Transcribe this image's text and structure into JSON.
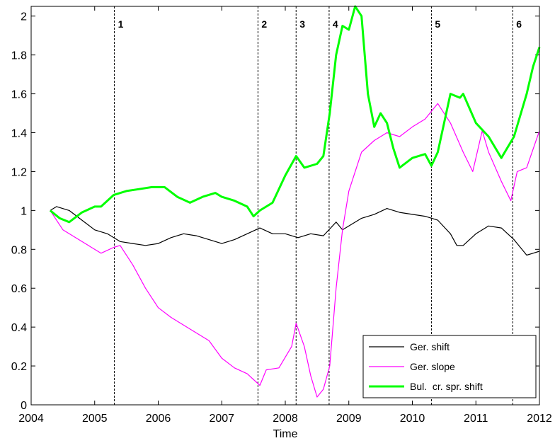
{
  "chart_data": {
    "type": "line",
    "xlabel": "Time",
    "xlim": [
      2004,
      2012
    ],
    "xticks": [
      2004,
      2005,
      2006,
      2007,
      2008,
      2009,
      2010,
      2011,
      2012
    ],
    "ylim": [
      0,
      2.05
    ],
    "yticks": [
      0,
      0.2,
      0.4,
      0.6,
      0.8,
      1,
      1.2,
      1.4,
      1.6,
      1.8,
      2
    ],
    "legend": "lower right",
    "vlines": [
      {
        "x": 2005.31,
        "label": "1"
      },
      {
        "x": 2007.57,
        "label": "2"
      },
      {
        "x": 2008.17,
        "label": "3"
      },
      {
        "x": 2008.69,
        "label": "4"
      },
      {
        "x": 2010.3,
        "label": "5"
      },
      {
        "x": 2011.58,
        "label": "6"
      }
    ],
    "series": [
      {
        "name": "Ger. shift",
        "color": "#000000",
        "width": 1.2,
        "x": [
          2004.3,
          2004.4,
          2004.6,
          2004.8,
          2005.0,
          2005.2,
          2005.4,
          2005.6,
          2005.8,
          2006.0,
          2006.2,
          2006.4,
          2006.6,
          2006.8,
          2007.0,
          2007.2,
          2007.4,
          2007.6,
          2007.8,
          2008.0,
          2008.2,
          2008.4,
          2008.6,
          2008.8,
          2008.9,
          2009.0,
          2009.2,
          2009.4,
          2009.6,
          2009.8,
          2010.0,
          2010.2,
          2010.4,
          2010.6,
          2010.7,
          2010.8,
          2011.0,
          2011.2,
          2011.4,
          2011.6,
          2011.8,
          2011.9,
          2012.0
        ],
        "values": [
          1.0,
          1.02,
          1.0,
          0.95,
          0.9,
          0.88,
          0.84,
          0.83,
          0.82,
          0.83,
          0.86,
          0.88,
          0.87,
          0.85,
          0.83,
          0.85,
          0.88,
          0.91,
          0.88,
          0.88,
          0.86,
          0.88,
          0.87,
          0.94,
          0.9,
          0.92,
          0.96,
          0.98,
          1.01,
          0.99,
          0.98,
          0.97,
          0.95,
          0.88,
          0.82,
          0.82,
          0.88,
          0.92,
          0.91,
          0.85,
          0.77,
          0.78,
          0.79
        ]
      },
      {
        "name": "Ger. slope",
        "color": "#ff00ff",
        "width": 1.2,
        "x": [
          2004.3,
          2004.5,
          2004.7,
          2004.9,
          2005.1,
          2005.3,
          2005.4,
          2005.6,
          2005.8,
          2006.0,
          2006.2,
          2006.4,
          2006.6,
          2006.8,
          2007.0,
          2007.2,
          2007.4,
          2007.6,
          2007.7,
          2007.9,
          2008.1,
          2008.17,
          2008.3,
          2008.4,
          2008.5,
          2008.6,
          2008.7,
          2008.8,
          2008.9,
          2009.0,
          2009.2,
          2009.4,
          2009.6,
          2009.8,
          2010.0,
          2010.2,
          2010.3,
          2010.4,
          2010.6,
          2010.8,
          2010.95,
          2011.1,
          2011.2,
          2011.4,
          2011.55,
          2011.65,
          2011.8,
          2012.0
        ],
        "values": [
          1.0,
          0.9,
          0.86,
          0.82,
          0.78,
          0.81,
          0.82,
          0.72,
          0.6,
          0.5,
          0.45,
          0.41,
          0.37,
          0.33,
          0.24,
          0.19,
          0.16,
          0.1,
          0.18,
          0.19,
          0.3,
          0.42,
          0.3,
          0.15,
          0.04,
          0.08,
          0.2,
          0.6,
          0.9,
          1.1,
          1.3,
          1.36,
          1.4,
          1.38,
          1.43,
          1.47,
          1.51,
          1.55,
          1.45,
          1.3,
          1.2,
          1.41,
          1.3,
          1.15,
          1.05,
          1.2,
          1.22,
          1.41
        ]
      },
      {
        "name": "Bul.  cr. spr. shift",
        "color": "#00ff00",
        "width": 3,
        "x": [
          2004.3,
          2004.45,
          2004.6,
          2004.8,
          2005.0,
          2005.1,
          2005.3,
          2005.5,
          2005.7,
          2005.9,
          2006.1,
          2006.3,
          2006.5,
          2006.7,
          2006.9,
          2007.0,
          2007.2,
          2007.4,
          2007.5,
          2007.6,
          2007.8,
          2008.0,
          2008.17,
          2008.3,
          2008.5,
          2008.6,
          2008.7,
          2008.8,
          2008.9,
          2009.0,
          2009.1,
          2009.2,
          2009.3,
          2009.4,
          2009.5,
          2009.6,
          2009.7,
          2009.8,
          2010.0,
          2010.2,
          2010.3,
          2010.4,
          2010.6,
          2010.75,
          2010.8,
          2011.0,
          2011.2,
          2011.4,
          2011.6,
          2011.8,
          2011.9,
          2012.0
        ],
        "values": [
          1.0,
          0.96,
          0.94,
          0.99,
          1.02,
          1.02,
          1.08,
          1.1,
          1.11,
          1.12,
          1.12,
          1.07,
          1.04,
          1.07,
          1.09,
          1.07,
          1.05,
          1.02,
          0.97,
          1.0,
          1.04,
          1.18,
          1.28,
          1.22,
          1.24,
          1.28,
          1.5,
          1.8,
          1.95,
          1.93,
          2.05,
          2.0,
          1.6,
          1.43,
          1.5,
          1.45,
          1.32,
          1.22,
          1.27,
          1.29,
          1.23,
          1.3,
          1.6,
          1.58,
          1.6,
          1.45,
          1.38,
          1.27,
          1.38,
          1.6,
          1.74,
          1.84
        ]
      }
    ]
  }
}
